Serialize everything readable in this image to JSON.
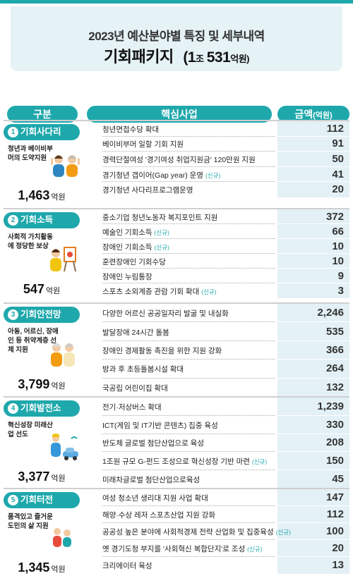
{
  "header": {
    "subtitle": "2023년 예산분야별 특징 및 세부내역",
    "title": "기회패키지",
    "amount_open": "(1",
    "amount_jo": "조",
    "amount_num": "531",
    "amount_unit": "억원)"
  },
  "columns": {
    "category": "구분",
    "project": "핵심사업",
    "amount": "금액",
    "amount_unit": "(억원)"
  },
  "colors": {
    "accent": "#1fa8ac",
    "header_bg": "#e5f2f6",
    "amount_bg": "#e3f0f5"
  },
  "sections": [
    {
      "num": "1",
      "name": "기회사다리",
      "desc": "청년과 베이비부머의 도약지원",
      "total": "1,463",
      "total_unit": "억원",
      "illustration": "two-people-waving-icon",
      "items": [
        {
          "name": "청년면접수당 확대",
          "new": "",
          "value": "112"
        },
        {
          "name": "베이비부머 일할 기회 지원",
          "new": "",
          "value": "91"
        },
        {
          "name": "경력단절여성 '경기여성 취업지원금' 120만원 지원",
          "new": "",
          "value": "50"
        },
        {
          "name": "경기청년 갭이어(Gap year) 운영",
          "new": "(신규)",
          "value": "41"
        },
        {
          "name": "경기청년 사다리프로그램운영",
          "new": "",
          "value": "20"
        }
      ]
    },
    {
      "num": "2",
      "name": "기회소득",
      "desc": "사회적 가치활동에 정당한 보상",
      "total": "547",
      "total_unit": "억원",
      "illustration": "painter-easel-icon",
      "items": [
        {
          "name": "중소기업 청년노동자 복지포인트 지원",
          "new": "",
          "value": "372"
        },
        {
          "name": "예술인 기회소득",
          "new": "(신규)",
          "value": "66"
        },
        {
          "name": "장애인 기회소득",
          "new": "(신규)",
          "value": "10"
        },
        {
          "name": "훈련장애인 기회수당",
          "new": "",
          "value": "10"
        },
        {
          "name": "장애인 누림통장",
          "new": "",
          "value": "9"
        },
        {
          "name": "스포츠 소외계층 관람 기회 확대",
          "new": "(신규)",
          "value": "3"
        }
      ]
    },
    {
      "num": "3",
      "name": "기회안전망",
      "desc": "아동, 어르신, 장애인 등 취약계층 선제 지원",
      "total": "3,799",
      "total_unit": "억원",
      "illustration": "elderly-couple-icon",
      "items": [
        {
          "name": "다양한 어르신 공공일자리 발굴 및 내실화",
          "new": "",
          "value": "2,246"
        },
        {
          "name": "발달장애 24시간 돌봄",
          "new": "",
          "value": "535"
        },
        {
          "name": "장애인 경제활동 촉진을 위한 지원 강화",
          "new": "",
          "value": "366"
        },
        {
          "name": "방과 후 초등돌봄시설 확대",
          "new": "",
          "value": "264"
        },
        {
          "name": "국공립 어린이집 확대",
          "new": "",
          "value": "132"
        }
      ]
    },
    {
      "num": "4",
      "name": "기회발전소",
      "desc": "혁신성장 미래산업 선도",
      "total": "3,377",
      "total_unit": "억원",
      "illustration": "engineer-car-icon",
      "items": [
        {
          "name": "전기·저상버스 확대",
          "new": "",
          "value": "1,239"
        },
        {
          "name": "ICT(게임 및 IT기반 콘텐츠) 집중 육성",
          "new": "",
          "value": "330"
        },
        {
          "name": "반도체 글로벌 첨단산업으로 육성",
          "new": "",
          "value": "208"
        },
        {
          "name": "1조원 규모 G-펀드 조성으로 혁신성장 기반 마련",
          "new": "(신규)",
          "value": "150"
        },
        {
          "name": "미래차글로벌 첨단산업으로육성",
          "new": "",
          "value": "45"
        }
      ]
    },
    {
      "num": "5",
      "name": "기회터전",
      "desc": "품격있고 즐거운 도민의 삶 지원",
      "total": "1,345",
      "total_unit": "억원",
      "illustration": "leisure-people-icon",
      "items": [
        {
          "name": "여성 청소년 생리대 지원 사업 확대",
          "new": "",
          "value": "147"
        },
        {
          "name": "해양·수상 레저 스포츠산업 지원 강화",
          "new": "",
          "value": "112"
        },
        {
          "name": "공공성 높은 분야에 사회적경제 전략 산업화 및 집중육성",
          "new": "(신규)",
          "value": "100"
        },
        {
          "name": "옛 경기도청 부지를 '사회혁신 복합단지'로 조성",
          "new": "(신규)",
          "value": "20"
        },
        {
          "name": "크리에이터 육성",
          "new": "",
          "value": "13"
        }
      ]
    }
  ]
}
